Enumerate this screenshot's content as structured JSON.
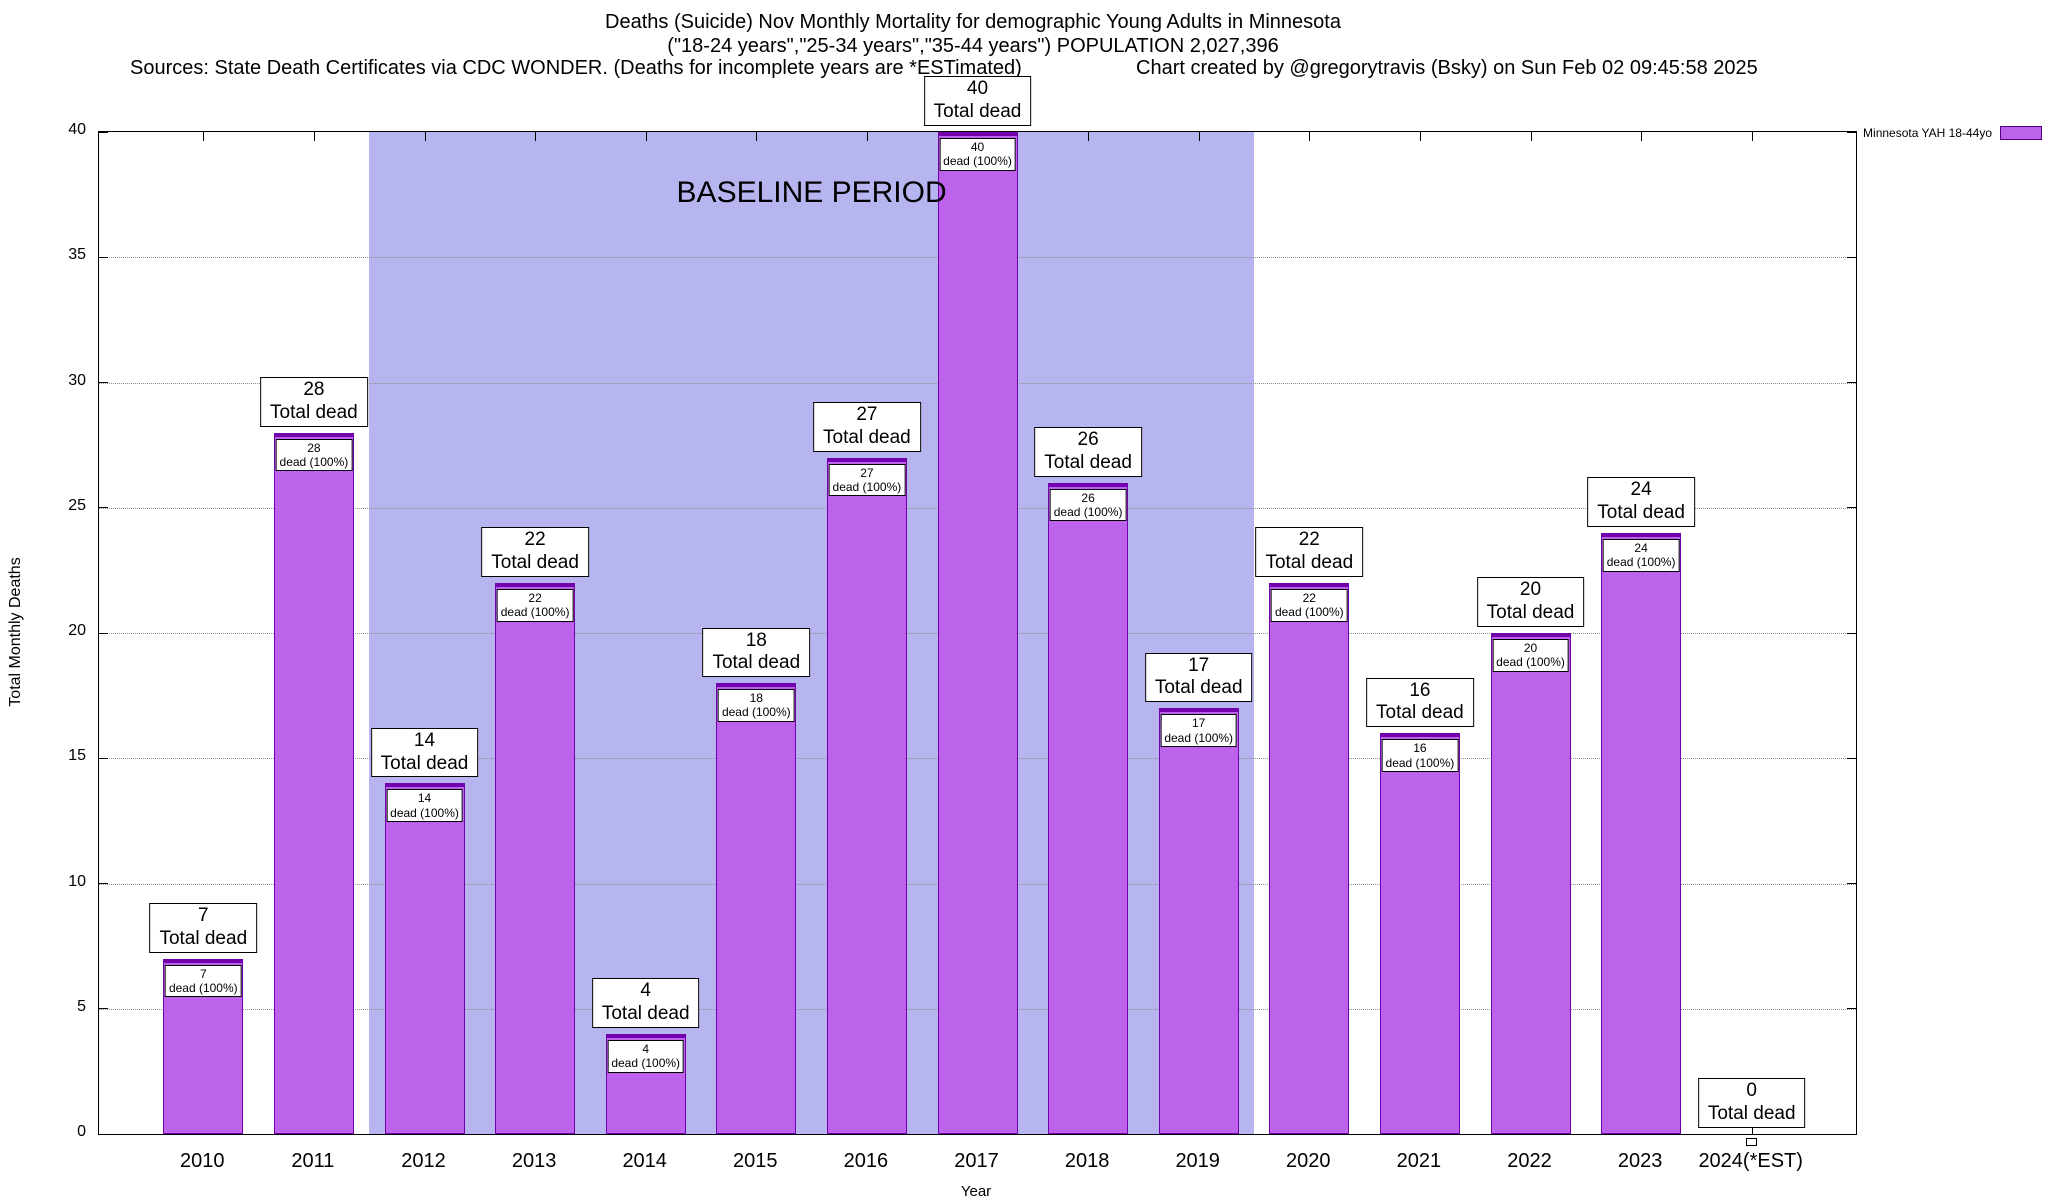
{
  "header": {
    "title_line1": "Deaths (Suicide) Nov Monthly Mortality for demographic Young Adults in Minnesota",
    "title_line2": "(\"18-24 years\",\"25-34 years\",\"35-44 years\") POPULATION 2,027,396",
    "sources": "Sources: State Death Certificates via CDC WONDER. (Deaths for incomplete years are *ESTimated)",
    "credit": "Chart created by @gregorytravis (Bsky) on Sun Feb 02 09:45:58 2025"
  },
  "legend": {
    "label": "Minnesota YAH 18-44yo",
    "swatch_color": "#bd62ea"
  },
  "chart_data": {
    "type": "bar",
    "title": "Deaths (Suicide) Nov Monthly Mortality for demographic Young Adults in Minnesota",
    "xlabel": "Year",
    "ylabel": "Total Monthly Deaths",
    "ylim": [
      0,
      40
    ],
    "yticks": [
      0,
      5,
      10,
      15,
      20,
      25,
      30,
      35,
      40
    ],
    "categories": [
      "2010",
      "2011",
      "2012",
      "2013",
      "2014",
      "2015",
      "2016",
      "2017",
      "2018",
      "2019",
      "2020",
      "2021",
      "2022",
      "2023",
      "2024(*EST)"
    ],
    "values": [
      7,
      28,
      14,
      22,
      4,
      18,
      27,
      40,
      26,
      17,
      22,
      16,
      20,
      24,
      0
    ],
    "series_name": "Minnesota YAH 18-44yo",
    "bar_color": "#bd62ea",
    "bar_border_color": "#7300ad",
    "total_label_line2": "Total dead",
    "pct_label_line2": "dead (100%)",
    "baseline": {
      "label": "BASELINE PERIOD",
      "from_category": "2012",
      "to_category": "2019",
      "color": "#b6b5f0"
    },
    "grid": true,
    "legend_position": "top-right-outside"
  }
}
